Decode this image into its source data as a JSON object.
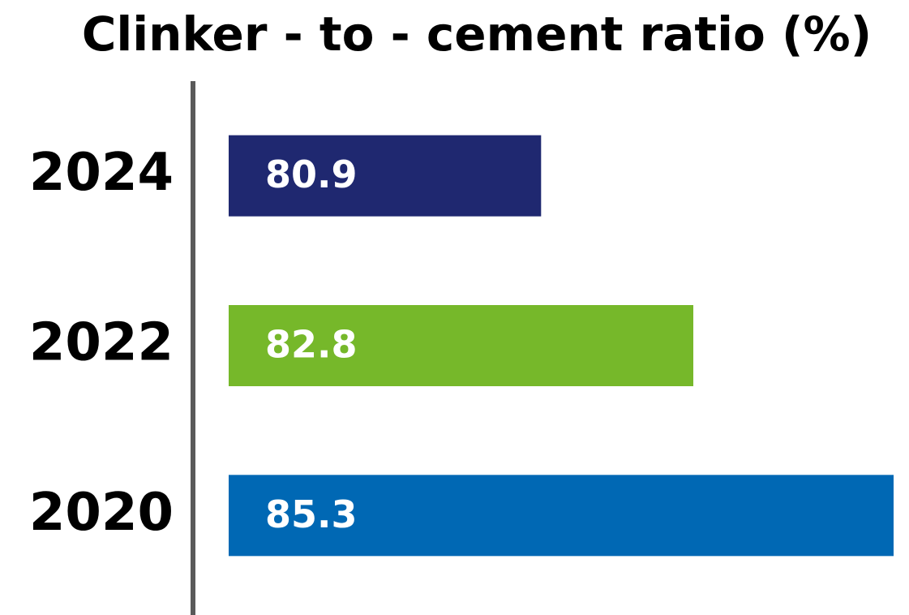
{
  "chart_data": {
    "type": "bar",
    "orientation": "horizontal",
    "title": "Clinker - to - cement ratio (%)",
    "categories": [
      "2024",
      "2022",
      "2020"
    ],
    "values": [
      80.9,
      82.8,
      85.3
    ],
    "colors": [
      "#1f2870",
      "#76b82a",
      "#0068b4"
    ],
    "xlim": [
      77,
      85.3
    ]
  }
}
